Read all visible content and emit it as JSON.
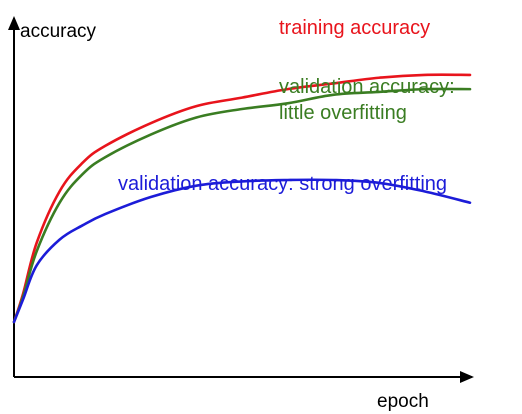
{
  "chart_data": {
    "type": "line",
    "title": "",
    "xlabel": "epoch",
    "ylabel": "accuracy",
    "xlim": [
      0,
      100
    ],
    "ylim": [
      0,
      100
    ],
    "grid": false,
    "legend": "none",
    "series": [
      {
        "name": "training accuracy",
        "color": "#e8141c",
        "x": [
          0,
          2,
          5,
          10,
          15,
          20,
          30,
          40,
          50,
          60,
          70,
          80,
          90,
          100
        ],
        "y": [
          0,
          10,
          28,
          46,
          56,
          62,
          70,
          76,
          79,
          82,
          84,
          86,
          87,
          87
        ]
      },
      {
        "name": "validation accuracy: little overfitting",
        "color": "#3a7d22",
        "x": [
          0,
          2,
          5,
          10,
          15,
          20,
          30,
          40,
          50,
          60,
          70,
          80,
          90,
          100
        ],
        "y": [
          0,
          9,
          25,
          42,
          52,
          58,
          66,
          72,
          75,
          77,
          80,
          81,
          82,
          82
        ]
      },
      {
        "name": "validation accuracy: strong overfitting",
        "color": "#1c1cd8",
        "x": [
          0,
          2,
          5,
          10,
          15,
          20,
          30,
          40,
          50,
          60,
          70,
          80,
          90,
          100
        ],
        "y": [
          0,
          8,
          20,
          29,
          34,
          38,
          44,
          48,
          49.5,
          50,
          50,
          49,
          46,
          42
        ]
      }
    ],
    "annotations": [
      {
        "text": "training accuracy",
        "series": 0
      },
      {
        "text": "validation accuracy:",
        "series": 1
      },
      {
        "text": "little overfitting",
        "series": 1
      },
      {
        "text": "validation accuracy: strong overfitting",
        "series": 2
      }
    ]
  },
  "axis_color": "#000000"
}
